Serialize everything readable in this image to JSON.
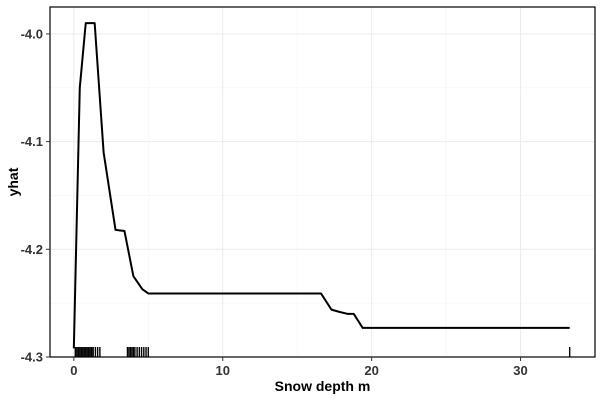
{
  "chart_data": {
    "type": "line",
    "title": "",
    "xlabel": "Snow depth m",
    "ylabel": "yhat",
    "xlim": [
      -1.6,
      35.0
    ],
    "ylim": [
      -4.3,
      -3.975
    ],
    "x_ticks": [
      0,
      10,
      20,
      30
    ],
    "y_ticks": [
      -4.0,
      -4.1,
      -4.2,
      -4.3
    ],
    "x_tick_labels": [
      "0",
      "10",
      "20",
      "30"
    ],
    "y_tick_labels": [
      "-4.0",
      "-4.1",
      "-4.2",
      "-4.3"
    ],
    "grid": true,
    "legend": "none",
    "line_color": "#000000",
    "series": [
      {
        "x": [
          0.0,
          0.4,
          0.8,
          1.0,
          1.4,
          2.0,
          2.8,
          3.4,
          4.0,
          4.6,
          5.0,
          10.0,
          14.0,
          16.6,
          17.3,
          17.8,
          18.4,
          18.8,
          19.4,
          25.0,
          33.3
        ],
        "y": [
          -4.292,
          -4.05,
          -3.99,
          -3.99,
          -3.99,
          -4.11,
          -4.182,
          -4.183,
          -4.225,
          -4.237,
          -4.241,
          -4.241,
          -4.241,
          -4.241,
          -4.256,
          -4.258,
          -4.26,
          -4.26,
          -4.273,
          -4.273,
          -4.273
        ]
      }
    ],
    "rug": [
      0.1,
      0.2,
      0.3,
      0.4,
      0.5,
      0.6,
      0.7,
      0.8,
      0.9,
      1.0,
      1.1,
      1.2,
      1.3,
      1.45,
      1.6,
      1.75,
      3.6,
      3.7,
      3.8,
      3.9,
      4.0,
      4.1,
      4.25,
      4.4,
      4.55,
      4.7,
      4.85,
      5.0,
      33.3
    ]
  }
}
